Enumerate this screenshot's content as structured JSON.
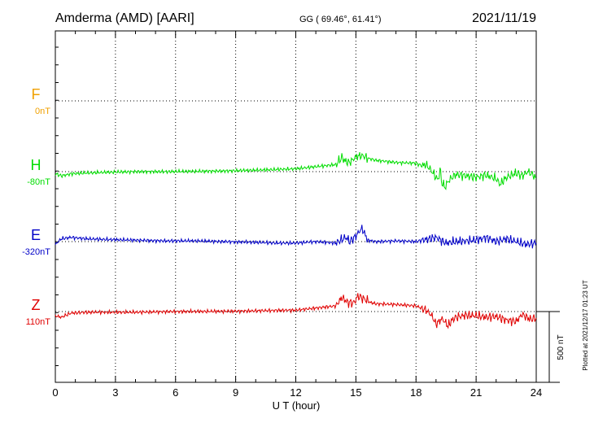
{
  "header": {
    "station": "Amderma (AMD)  [AARI]",
    "coords": "GG ( 69.46°,  61.41°)",
    "date": "2021/11/19"
  },
  "footer": {
    "plotted": "Plotted at 2021/12/17 01:23 UT"
  },
  "colors": {
    "F": "#f0a000",
    "H": "#00dd00",
    "E": "#0000c8",
    "Z": "#e00000",
    "grid": "#000000",
    "axis": "#000000"
  },
  "chart_data": {
    "type": "line",
    "title": "Amderma (AMD)  [AARI]",
    "xlabel": "U T (hour)",
    "xlim": [
      0,
      24
    ],
    "xticks": [
      "0",
      "3",
      "6",
      "9",
      "12",
      "15",
      "18",
      "21",
      "24"
    ],
    "scale_bar_label": "500 nT",
    "scale_bar_nT": 500,
    "grid": true,
    "series": [
      {
        "name": "F",
        "baseline_label": "0nT",
        "color": "#f0a000",
        "x": [],
        "y": []
      },
      {
        "name": "H",
        "baseline_label": "-80nT",
        "color": "#00dd00",
        "x": [
          0,
          0.3,
          0.8,
          1.5,
          2.5,
          4,
          5.5,
          7,
          8.5,
          10,
          11,
          12,
          13,
          14,
          14.3,
          14.5,
          14.7,
          15,
          15.3,
          15.6,
          16,
          17,
          18,
          18.3,
          18.5,
          18.7,
          18.9,
          19.1,
          19.2,
          19.3,
          19.45,
          19.6,
          19.8,
          20,
          20.5,
          21,
          21.5,
          22,
          22.2,
          22.4,
          22.6,
          23,
          23.3,
          23.6,
          23.8,
          24
        ],
        "y": [
          -95,
          -110,
          -95,
          -90,
          -85,
          -80,
          -80,
          -78,
          -75,
          -70,
          -65,
          -60,
          -45,
          -30,
          20,
          -10,
          -15,
          25,
          35,
          15,
          0,
          -15,
          -20,
          -40,
          -30,
          -60,
          -100,
          -140,
          -60,
          -160,
          -190,
          -150,
          -120,
          -100,
          -110,
          -120,
          -105,
          -130,
          -170,
          -135,
          -115,
          -90,
          -110,
          -80,
          -100,
          -125
        ]
      },
      {
        "name": "E",
        "baseline_label": "-320nT",
        "color": "#0000c8",
        "x": [
          0,
          0.3,
          0.8,
          1.5,
          2.5,
          4,
          5.5,
          7,
          8.5,
          10,
          11,
          12,
          13,
          14,
          14.5,
          14.7,
          15,
          15.3,
          15.6,
          16,
          17,
          18,
          18.5,
          19,
          19.5,
          20,
          21,
          21.5,
          22,
          22.5,
          23,
          23.5,
          24
        ],
        "y": [
          -340,
          -300,
          -290,
          -300,
          -305,
          -310,
          -315,
          -315,
          -320,
          -325,
          -330,
          -330,
          -320,
          -330,
          -290,
          -320,
          -280,
          -225,
          -310,
          -320,
          -315,
          -320,
          -305,
          -290,
          -330,
          -320,
          -310,
          -290,
          -320,
          -300,
          -320,
          -340,
          -330
        ]
      },
      {
        "name": "Z",
        "baseline_label": "110nT",
        "color": "#e00000",
        "x": [
          0,
          0.3,
          0.8,
          1.5,
          2.5,
          4,
          5.5,
          7,
          8.5,
          10,
          11,
          12,
          13,
          14,
          14.3,
          14.6,
          14.9,
          15.1,
          15.4,
          15.7,
          16,
          17,
          18,
          18.5,
          18.8,
          19,
          19.3,
          19.6,
          19.8,
          20,
          20.5,
          21,
          21.5,
          22,
          22.5,
          23,
          23.3,
          23.7,
          24
        ],
        "y": [
          80,
          70,
          100,
          105,
          105,
          105,
          110,
          110,
          112,
          115,
          118,
          120,
          135,
          150,
          210,
          175,
          170,
          220,
          200,
          175,
          165,
          160,
          150,
          120,
          80,
          20,
          60,
          10,
          50,
          70,
          85,
          80,
          70,
          75,
          50,
          40,
          90,
          55,
          65
        ]
      }
    ]
  }
}
